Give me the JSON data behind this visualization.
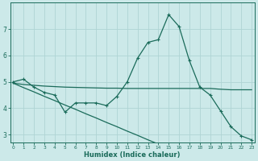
{
  "xlabel": "Humidex (Indice chaleur)",
  "ylabel": "",
  "background_color": "#cce9e9",
  "grid_color": "#afd4d4",
  "line_color": "#1a6b5a",
  "x_data": [
    0,
    1,
    2,
    3,
    4,
    5,
    6,
    7,
    8,
    9,
    10,
    11,
    12,
    13,
    14,
    15,
    16,
    17,
    18,
    19,
    20,
    21,
    22,
    23
  ],
  "y_main": [
    5.0,
    5.1,
    4.8,
    4.6,
    4.5,
    3.85,
    4.2,
    4.2,
    4.2,
    4.1,
    4.45,
    5.0,
    5.9,
    6.5,
    6.6,
    7.55,
    7.1,
    5.8,
    4.8,
    4.5,
    3.9,
    3.3,
    2.95,
    2.8
  ],
  "y_line1": [
    4.95,
    4.9,
    4.87,
    4.84,
    4.82,
    4.8,
    4.79,
    4.78,
    4.77,
    4.76,
    4.76,
    4.75,
    4.75,
    4.75,
    4.75,
    4.75,
    4.75,
    4.75,
    4.75,
    4.75,
    4.72,
    4.7,
    4.7,
    4.7
  ],
  "y_line2": [
    4.95,
    4.78,
    4.62,
    4.45,
    4.29,
    4.12,
    3.96,
    3.79,
    3.63,
    3.46,
    3.3,
    3.13,
    2.97,
    2.8,
    2.64,
    2.47,
    2.31,
    2.14,
    1.98,
    1.81,
    1.65,
    1.48,
    1.32,
    1.15
  ],
  "ylim": [
    2.7,
    8.0
  ],
  "xlim": [
    -0.3,
    23.3
  ],
  "yticks": [
    3,
    4,
    5,
    6,
    7
  ],
  "xticks": [
    0,
    1,
    2,
    3,
    4,
    5,
    6,
    7,
    8,
    9,
    10,
    11,
    12,
    13,
    14,
    15,
    16,
    17,
    18,
    19,
    20,
    21,
    22,
    23
  ],
  "xlabel_fontsize": 6.0,
  "xtick_fontsize": 4.2,
  "ytick_fontsize": 5.5
}
